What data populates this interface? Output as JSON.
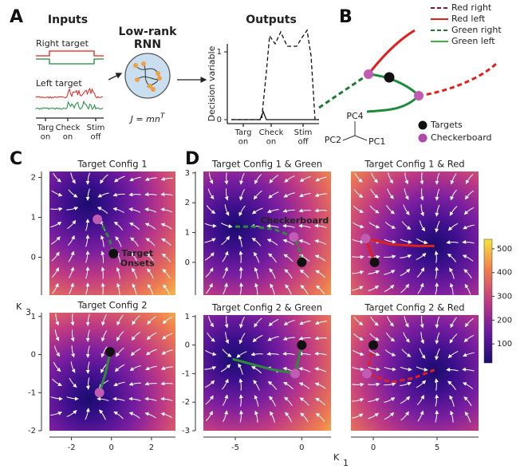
{
  "panel_a": {
    "label": "A",
    "inputs_title": "Inputs",
    "right_target": "Right target",
    "left_target": "Left target",
    "input_x_labels": [
      "Targ on",
      "Check on",
      "Stim off"
    ],
    "network_title": "Low-rank RNN",
    "equation": "J = mn",
    "equation_sup": "T",
    "outputs_title": "Outputs",
    "y_label": "Decision variable",
    "yticks": [
      0,
      1
    ],
    "x_labels": [
      "Targ on",
      "Check on",
      "Stim off"
    ]
  },
  "panel_b": {
    "label": "B",
    "legend": [
      {
        "label": "Red right",
        "color": "#7a1630",
        "dash": true
      },
      {
        "label": "Red left",
        "color": "#e0201b",
        "dash": false
      },
      {
        "label": "Green right",
        "color": "#1f7a36",
        "dash": true
      },
      {
        "label": "Green left",
        "color": "#3cb043",
        "dash": false
      }
    ],
    "markers": [
      {
        "label": "Targets",
        "color": "#111111"
      },
      {
        "label": "Checkerboard",
        "color": "#b04aa8"
      }
    ],
    "axes": [
      "PC4",
      "PC2",
      "PC1"
    ]
  },
  "panel_c": {
    "label": "C",
    "y_axis_label": "K",
    "y_axis_sub": "3",
    "plots": [
      {
        "title": "Target Config 1",
        "xlim": [
          -3.1,
          3.2
        ],
        "ylim": [
          -0.95,
          2.15
        ],
        "yticks": [
          0,
          1,
          2
        ],
        "lines": [
          {
            "color": "#2e8b3a",
            "dash": true,
            "x": [
              -0.7,
              -0.4,
              -0.1,
              0.1
            ],
            "y": [
              0.95,
              0.75,
              0.45,
              0.09
            ]
          }
        ],
        "points": [
          {
            "color": "#111111",
            "x": 0.1,
            "y": 0.09
          },
          {
            "color": "#c15cb5",
            "x": -0.7,
            "y": 0.95
          }
        ],
        "annotation": "Target Onsets"
      },
      {
        "title": "Target Config 2",
        "xlim": [
          -3.1,
          3.2
        ],
        "ylim": [
          -2.0,
          1.1
        ],
        "xticks": [
          -2,
          0,
          2
        ],
        "yticks": [
          -2,
          -1,
          0,
          1
        ],
        "lines": [
          {
            "color": "#2e8b3a",
            "dash": false,
            "x": [
              -0.07,
              -0.3,
              -0.6
            ],
            "y": [
              0.07,
              -0.5,
              -1.0
            ]
          }
        ],
        "points": [
          {
            "color": "#111111",
            "x": -0.07,
            "y": 0.07
          },
          {
            "color": "#c15cb5",
            "x": -0.6,
            "y": -1.0
          }
        ]
      }
    ]
  },
  "panel_d": {
    "label": "D",
    "x_axis_label": "K",
    "x_axis_sub": "1",
    "plots": [
      {
        "title": "Target Config 1 & Green",
        "xlim": [
          -7.4,
          2.2
        ],
        "ylim": [
          -1.1,
          3.05
        ],
        "yticks": [
          0,
          1,
          2,
          3
        ],
        "lines": [
          {
            "color": "#2e8b3a",
            "dash": true,
            "x": [
              -5,
              -3.5,
              -2,
              -0.6,
              -0.2,
              0
            ],
            "y": [
              1.2,
              1.2,
              1.1,
              0.85,
              0.45,
              0
            ]
          }
        ],
        "points": [
          {
            "color": "#111111",
            "x": 0,
            "y": 0
          },
          {
            "color": "#c15cb5",
            "x": -0.6,
            "y": 0.85
          }
        ],
        "annotation": "Checkerboard"
      },
      {
        "title": "Target Config 1 & Red",
        "xlim": [
          -1.75,
          8.25
        ],
        "ylim": [
          -1.1,
          3.05
        ],
        "lines": [
          {
            "color": "#e0201b",
            "dash": false,
            "x": [
              0.1,
              -0.6,
              1.5,
              3.5,
              4.8
            ],
            "y": [
              0,
              0.8,
              0.6,
              0.55,
              0.55
            ]
          }
        ],
        "points": [
          {
            "color": "#111111",
            "x": 0.1,
            "y": 0
          },
          {
            "color": "#c15cb5",
            "x": -0.6,
            "y": 0.8
          }
        ]
      },
      {
        "title": "Target Config 2 & Green",
        "xlim": [
          -7.4,
          2.2
        ],
        "ylim": [
          -3.0,
          1.05
        ],
        "xticks": [
          -5,
          0
        ],
        "yticks": [
          -3,
          -2,
          -1,
          0,
          1
        ],
        "lines": [
          {
            "color": "#2e8b3a",
            "dash": false,
            "x": [
              -5.2,
              -2.3,
              -0.5,
              0
            ],
            "y": [
              -0.49,
              -0.85,
              -1.0,
              0
            ]
          }
        ],
        "points": [
          {
            "color": "#111111",
            "x": 0,
            "y": 0
          },
          {
            "color": "#c15cb5",
            "x": -0.5,
            "y": -1.0
          }
        ]
      },
      {
        "title": "Target Config 2 & Red",
        "xlim": [
          -1.75,
          8.25
        ],
        "ylim": [
          -3.0,
          1.05
        ],
        "xticks": [
          0,
          5
        ],
        "lines": [
          {
            "color": "#e0201b",
            "dash": true,
            "x": [
              0,
              -0.5,
              1.4,
              3.2,
              4.8
            ],
            "y": [
              0,
              -1.0,
              -1.3,
              -1.15,
              -0.87
            ]
          }
        ],
        "points": [
          {
            "color": "#111111",
            "x": 0,
            "y": 0
          },
          {
            "color": "#c15cb5",
            "x": -0.5,
            "y": -1.0
          }
        ]
      }
    ]
  },
  "colorbar": {
    "lim": [
      20,
      540
    ],
    "ticks": [
      100,
      200,
      300,
      400,
      500
    ]
  }
}
